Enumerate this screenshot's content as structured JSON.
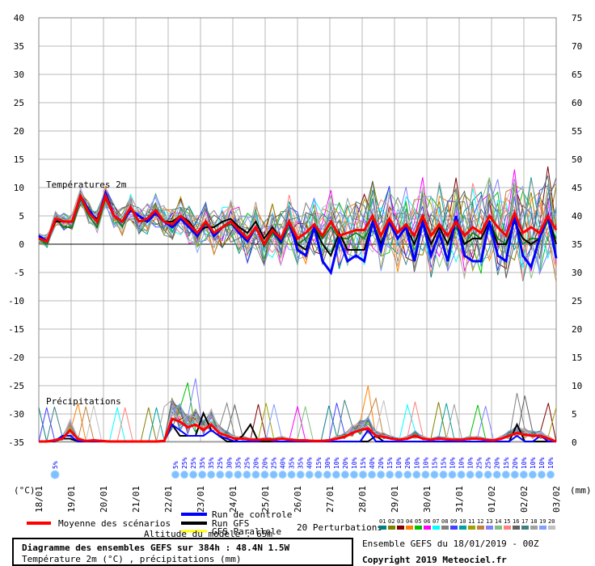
{
  "chart_data": {
    "type": "line",
    "temp_label": "Températures 2m",
    "precip_label": "Précipitations",
    "left_unit": "(°C)",
    "right_unit": "(mm)",
    "y_left_ticks": [
      40,
      35,
      30,
      25,
      20,
      15,
      10,
      5,
      0,
      -5,
      -10,
      -15,
      -20,
      -25,
      -30,
      -35
    ],
    "y_right_ticks": [
      75,
      70,
      65,
      60,
      55,
      50,
      45,
      40,
      35,
      30,
      25,
      20,
      15,
      10,
      5,
      0
    ],
    "x_ticks": [
      "18/01",
      "19/01",
      "20/01",
      "21/01",
      "22/01",
      "23/01",
      "24/01",
      "25/01",
      "26/01",
      "27/01",
      "28/01",
      "29/01",
      "30/01",
      "31/01",
      "01/02",
      "02/02",
      "03/02"
    ],
    "x_start": 0,
    "x_end": 384,
    "precip_scale_max": 15,
    "snow_pct_first": "5%",
    "snow_pcts": [
      "5%",
      "25%",
      "25%",
      "35%",
      "35%",
      "25%",
      "30%",
      "35%",
      "25%",
      "20%",
      "20%",
      "25%",
      "40%",
      "35%",
      "35%",
      "40%",
      "15%",
      "30%",
      "10%",
      "20%",
      "10%",
      "15%",
      "40%",
      "20%",
      "15%",
      "10%",
      "20%",
      "10%",
      "10%",
      "15%",
      "15%",
      "10%",
      "10%",
      "10%",
      "25%",
      "25%",
      "20%",
      "15%",
      "20%",
      "10%",
      "10%",
      "10%",
      "10%"
    ],
    "series": [
      {
        "name": "Moyenne des scénarios",
        "color": "#ff0000",
        "values": [
          1,
          0.5,
          4.5,
          4,
          4,
          8.5,
          5.5,
          4,
          8.5,
          5,
          4,
          6.5,
          4,
          4.5,
          6,
          4,
          3.5,
          5,
          3.5,
          2,
          4,
          2,
          3,
          4,
          2.5,
          1,
          3,
          0,
          2.5,
          1,
          4,
          1,
          2,
          3.5,
          1.5,
          4,
          1.5,
          2,
          2.5,
          2.5,
          5,
          1.5,
          4.5,
          2,
          3.5,
          1.5,
          5,
          1.5,
          3.5,
          1.5,
          4,
          1.5,
          3,
          2,
          5,
          3,
          1.5,
          5.5,
          2,
          3,
          2,
          5,
          2.5
        ]
      },
      {
        "name": "Run de controle",
        "color": "#0000ff",
        "values": [
          1.5,
          0.5,
          4.5,
          4,
          4,
          8.5,
          6,
          4,
          9,
          5,
          4,
          6,
          5,
          4,
          5.5,
          4,
          3,
          4.5,
          3,
          1.5,
          4,
          1.5,
          3,
          4,
          2,
          0.5,
          3,
          0,
          2.5,
          0.5,
          4,
          -1,
          -2,
          3,
          -3,
          -5,
          1,
          -3,
          -2,
          -3,
          4,
          -1,
          4,
          1,
          3,
          -3,
          4,
          -2,
          2,
          -3,
          5,
          -2,
          -3,
          -3,
          4,
          -2,
          -3,
          5,
          -2,
          -4,
          1,
          5,
          -2.5
        ]
      },
      {
        "name": "Run GFS",
        "color": "#000000",
        "values": [
          1,
          0.5,
          4,
          4,
          4,
          8.5,
          5.5,
          4.5,
          8.5,
          5,
          4,
          6,
          5,
          4,
          6,
          4,
          4,
          5,
          4,
          2,
          3,
          3,
          4,
          4.5,
          3,
          2,
          4,
          1,
          3,
          1,
          4,
          0,
          -1,
          3,
          0,
          -2,
          2,
          -1,
          -1,
          -1,
          4,
          0,
          4,
          1,
          3,
          0,
          4,
          0,
          3,
          0,
          4,
          0,
          1,
          1,
          4,
          0,
          0,
          4,
          1,
          0,
          1,
          5,
          0
        ]
      },
      {
        "name": "GFS Parallele",
        "color": "#008000",
        "values": [
          1,
          0,
          4.5,
          3,
          3,
          8,
          5,
          3,
          8,
          5,
          3,
          6.5,
          4,
          4,
          6,
          4,
          3,
          4.5,
          3,
          2,
          3.5,
          2,
          3,
          3.5,
          2,
          1,
          3,
          -0.5,
          2,
          0,
          3,
          0,
          1,
          3,
          1,
          3,
          1,
          1,
          2,
          1,
          4,
          0,
          4,
          1,
          3,
          0,
          4,
          0,
          3,
          0,
          3,
          0,
          2,
          1,
          4,
          1,
          0,
          4,
          0,
          1,
          1,
          4,
          1
        ]
      }
    ],
    "precip_series": [
      {
        "name": "Moyenne des scénarios",
        "color": "#ff0000",
        "values": [
          0,
          0,
          0.2,
          0.5,
          2,
          0.4,
          0.1,
          0.2,
          0.1,
          0,
          0,
          0,
          0,
          0,
          0,
          0,
          0.1,
          4,
          3.5,
          2.5,
          3,
          2,
          3,
          1.5,
          1,
          0.5,
          0.5,
          0.3,
          0.3,
          0.4,
          0.3,
          0.5,
          0.3,
          0.2,
          0.2,
          0.1,
          0.1,
          0.2,
          0.5,
          0.8,
          1.5,
          2,
          2.3,
          1,
          0.8,
          0.5,
          0.3,
          0.5,
          1,
          0.5,
          0.3,
          0.5,
          0.4,
          0.3,
          0.3,
          0.5,
          0.5,
          0.3,
          0.2,
          0.5,
          1,
          1.5,
          1.2,
          1,
          1,
          0.5,
          0
        ]
      },
      {
        "name": "Run de controle",
        "color": "#0000ff",
        "values": [
          0,
          0,
          0,
          1,
          1,
          0,
          0,
          0,
          0,
          0,
          0,
          0,
          0,
          0,
          0,
          0,
          0,
          3,
          2,
          1,
          1,
          1,
          2,
          1,
          0.5,
          0,
          0,
          0,
          0,
          0.5,
          0,
          0,
          0,
          0,
          0,
          0,
          0,
          0,
          0,
          0,
          0,
          0,
          2,
          0,
          0,
          0,
          0,
          0,
          0,
          0,
          0,
          0,
          0,
          0,
          0,
          0,
          0,
          0,
          0,
          0,
          0,
          1,
          0,
          0,
          1,
          0,
          0
        ]
      },
      {
        "name": "Run GFS",
        "color": "#000000",
        "values": [
          0,
          0,
          0,
          0.5,
          0.5,
          0,
          0,
          0,
          0,
          0,
          0,
          0,
          0,
          0,
          0,
          0,
          0,
          3,
          1,
          1,
          1,
          5,
          2,
          1,
          0,
          0,
          1,
          3,
          0,
          0,
          0,
          0,
          0,
          0,
          0,
          0,
          0,
          0,
          0,
          0,
          0,
          0,
          0,
          1,
          0,
          0,
          0,
          0,
          0,
          0,
          0,
          0,
          0,
          0,
          0,
          0,
          0,
          0,
          0,
          0,
          0,
          3,
          0,
          0,
          0,
          0,
          0
        ]
      }
    ],
    "legend": {
      "moyenne": "Moyenne des scénarios",
      "controle": "Run de controle",
      "gfs": "Run GFS",
      "parallele": "GFS Parallele",
      "altitude": "Altitude du modèle : 65m",
      "perturbations": "20 Perturbations",
      "pert_numbers": [
        "01",
        "02",
        "03",
        "04",
        "05",
        "06",
        "07",
        "08",
        "09",
        "10",
        "11",
        "12",
        "13",
        "14",
        "15",
        "16",
        "17",
        "18",
        "19",
        "20"
      ],
      "pert_colors": [
        "#008080",
        "#808000",
        "#800000",
        "#ff8000",
        "#00c000",
        "#ff00ff",
        "#00ffff",
        "#808080",
        "#4040ff",
        "#00a0a0",
        "#a0a000",
        "#c08040",
        "#8080ff",
        "#80c080",
        "#ff8080",
        "#606060",
        "#408080",
        "#a0a0a0",
        "#80a0ff",
        "#c0c0c0"
      ]
    },
    "title": "Diagramme des ensembles GEFS sur 384h : 48.4N 1.5W",
    "subtitle": "Température 2m (°C) , précipitations (mm)",
    "ensemble": "Ensemble GEFS du 18/01/2019 - 00Z",
    "copyright": "Copyright 2019 Meteociel.fr"
  }
}
